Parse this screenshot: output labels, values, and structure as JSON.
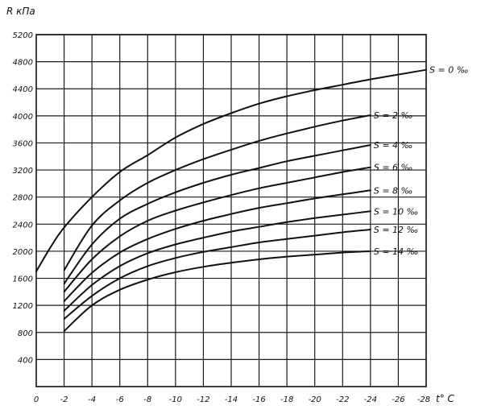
{
  "chart_data": {
    "type": "line",
    "title": "",
    "ylabel": "R кПа",
    "xlabel": "t° C",
    "x_axis_max_label": "-28",
    "xlim": [
      0,
      -28
    ],
    "ylim": [
      0,
      5200
    ],
    "x_ticks": [
      0,
      -2,
      -4,
      -6,
      -8,
      -10,
      -12,
      -14,
      -16,
      -18,
      -20,
      -22,
      -24,
      -26
    ],
    "x_tick_labels": [
      "0",
      "-2",
      "-4",
      "-6",
      "-8",
      "-10",
      "-12",
      "-14",
      "-16",
      "-18",
      "-20",
      "-22",
      "-24",
      "-26"
    ],
    "y_ticks": [
      400,
      800,
      1200,
      1600,
      2000,
      2400,
      2800,
      3200,
      3600,
      4000,
      4400,
      4800,
      5200
    ],
    "y_tick_labels": [
      "400",
      "800",
      "1200",
      "1600",
      "2000",
      "2400",
      "2800",
      "3200",
      "3600",
      "4000",
      "4400",
      "4800",
      "5200"
    ],
    "grid": true,
    "series": [
      {
        "name": "S = 0 ‰",
        "x": [
          0,
          -1,
          -2,
          -4,
          -6,
          -8,
          -10,
          -12,
          -14,
          -16,
          -18,
          -20,
          -22,
          -24,
          -26,
          -28
        ],
        "y": [
          1700,
          2050,
          2350,
          2800,
          3170,
          3420,
          3680,
          3880,
          4040,
          4180,
          4290,
          4380,
          4460,
          4540,
          4610,
          4680
        ]
      },
      {
        "name": "S = 2 ‰",
        "x": [
          -2,
          -4,
          -6,
          -8,
          -10,
          -12,
          -14,
          -16,
          -18,
          -20,
          -22,
          -24
        ],
        "y": [
          1720,
          2380,
          2750,
          3010,
          3200,
          3360,
          3500,
          3630,
          3740,
          3840,
          3930,
          4010
        ]
      },
      {
        "name": "S = 4 ‰",
        "x": [
          -2,
          -4,
          -6,
          -8,
          -10,
          -12,
          -14,
          -16,
          -18,
          -20,
          -22,
          -24
        ],
        "y": [
          1520,
          2100,
          2480,
          2700,
          2870,
          3010,
          3130,
          3230,
          3330,
          3410,
          3490,
          3570
        ]
      },
      {
        "name": "S = 6 ‰",
        "x": [
          -2,
          -4,
          -6,
          -8,
          -10,
          -12,
          -14,
          -16,
          -18,
          -20,
          -22,
          -24
        ],
        "y": [
          1400,
          1880,
          2220,
          2450,
          2600,
          2720,
          2830,
          2930,
          3010,
          3090,
          3170,
          3240
        ]
      },
      {
        "name": "S = 8 ‰",
        "x": [
          -2,
          -4,
          -6,
          -8,
          -10,
          -12,
          -14,
          -16,
          -18,
          -20,
          -22,
          -24
        ],
        "y": [
          1260,
          1680,
          1980,
          2180,
          2330,
          2450,
          2550,
          2640,
          2710,
          2780,
          2840,
          2900
        ]
      },
      {
        "name": "S = 10 ‰",
        "x": [
          -2,
          -4,
          -6,
          -8,
          -10,
          -12,
          -14,
          -16,
          -18,
          -20,
          -22,
          -24
        ],
        "y": [
          1120,
          1500,
          1780,
          1970,
          2100,
          2200,
          2290,
          2360,
          2430,
          2490,
          2540,
          2590
        ]
      },
      {
        "name": "S = 12 ‰",
        "x": [
          -2,
          -4,
          -6,
          -8,
          -10,
          -12,
          -14,
          -16,
          -18,
          -20,
          -22,
          -24
        ],
        "y": [
          1000,
          1340,
          1600,
          1780,
          1900,
          1990,
          2060,
          2130,
          2180,
          2230,
          2280,
          2320
        ]
      },
      {
        "name": "S = 14 ‰",
        "x": [
          -2,
          -4,
          -6,
          -8,
          -10,
          -12,
          -14,
          -16,
          -18,
          -20,
          -22,
          -24
        ],
        "y": [
          820,
          1200,
          1430,
          1580,
          1690,
          1770,
          1830,
          1880,
          1920,
          1950,
          1980,
          2000
        ]
      }
    ]
  }
}
